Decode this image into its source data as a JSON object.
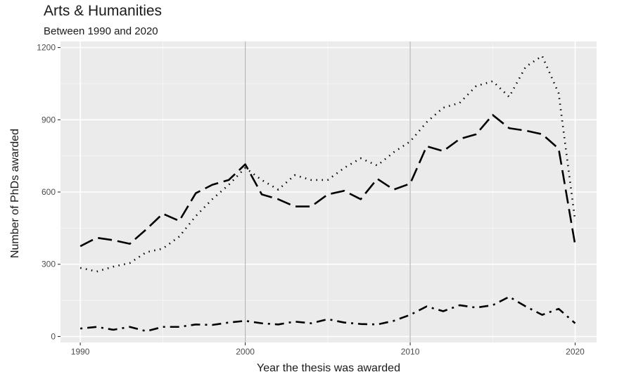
{
  "chart_data": {
    "type": "line",
    "title": "Arts & Humanities",
    "subtitle": "Between 1990 and 2020",
    "xlabel": "Year the thesis was awarded",
    "ylabel": "Number of PhDs awarded",
    "xlim": [
      1988.8,
      2021.3
    ],
    "ylim": [
      -25,
      1225
    ],
    "x_ticks": [
      1990,
      2000,
      2010,
      2020
    ],
    "y_ticks": [
      0,
      300,
      600,
      900,
      1200
    ],
    "reference_lines_x": [
      2000,
      2010
    ],
    "grid": true,
    "legend": "none",
    "x": [
      1990,
      1991,
      1992,
      1993,
      1994,
      1995,
      1996,
      1997,
      1998,
      1999,
      2000,
      2001,
      2002,
      2003,
      2004,
      2005,
      2006,
      2007,
      2008,
      2009,
      2010,
      2011,
      2012,
      2013,
      2014,
      2015,
      2016,
      2017,
      2018,
      2019,
      2020
    ],
    "series": [
      {
        "dash": "dotted",
        "values": [
          285,
          270,
          290,
          305,
          350,
          365,
          415,
          500,
          570,
          630,
          700,
          650,
          610,
          670,
          650,
          650,
          700,
          740,
          710,
          765,
          810,
          890,
          950,
          970,
          1040,
          1060,
          995,
          1120,
          1165,
          1010,
          480
        ]
      },
      {
        "dash": "longdash",
        "values": [
          375,
          410,
          400,
          385,
          445,
          510,
          480,
          595,
          630,
          650,
          715,
          590,
          570,
          540,
          540,
          590,
          605,
          570,
          655,
          610,
          635,
          790,
          770,
          820,
          840,
          920,
          865,
          855,
          840,
          780,
          380
        ]
      },
      {
        "dash": "dotdash",
        "values": [
          33,
          40,
          28,
          40,
          22,
          40,
          40,
          50,
          48,
          58,
          65,
          55,
          50,
          62,
          55,
          72,
          58,
          52,
          50,
          65,
          90,
          125,
          105,
          130,
          120,
          130,
          165,
          125,
          90,
          115,
          55
        ]
      }
    ]
  }
}
